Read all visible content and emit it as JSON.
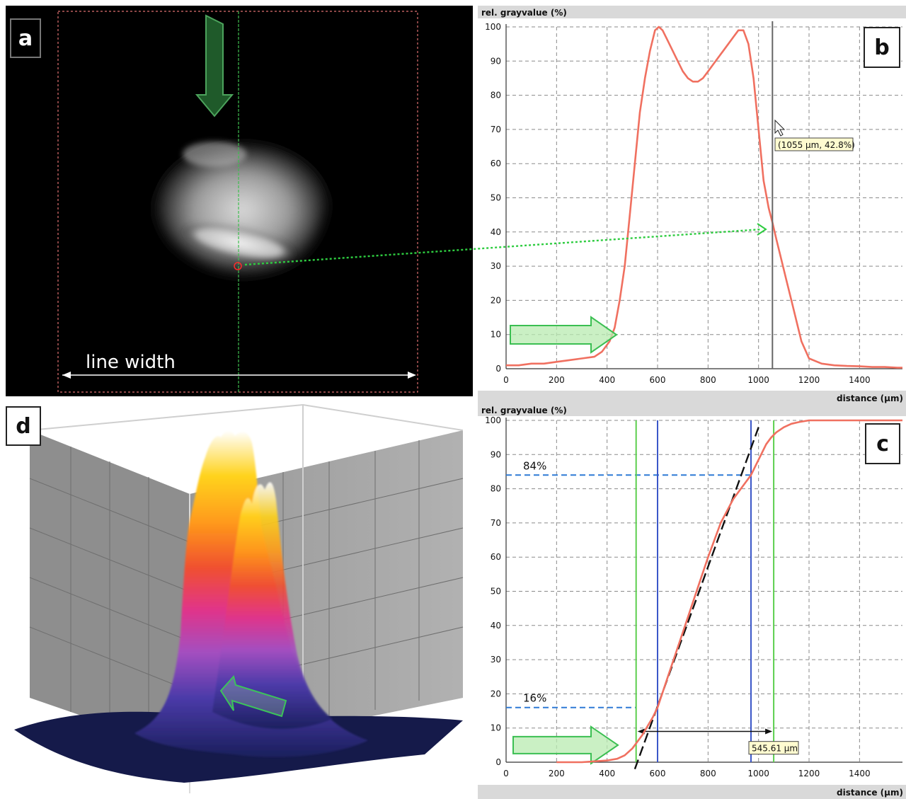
{
  "panels": {
    "a": {
      "label": "a",
      "line_width_label": "line width"
    },
    "b": {
      "label": "b"
    },
    "c": {
      "label": "c"
    },
    "d": {
      "label": "d"
    }
  },
  "chart_data": [
    {
      "panel": "b",
      "type": "line",
      "ylabel": "rel. grayvalue (%)",
      "xlabel": "distance (µm)",
      "xlim": [
        0,
        1570
      ],
      "ylim": [
        0,
        100
      ],
      "xticks": [
        0,
        200,
        400,
        600,
        800,
        1000,
        1200,
        1400
      ],
      "yticks": [
        0,
        10,
        20,
        30,
        40,
        50,
        60,
        70,
        80,
        90,
        100
      ],
      "grid": true,
      "series": [
        {
          "color": "#f07060",
          "x": [
            0,
            50,
            100,
            150,
            200,
            250,
            300,
            350,
            380,
            410,
            430,
            450,
            470,
            490,
            510,
            530,
            550,
            570,
            590,
            605,
            620,
            640,
            660,
            680,
            700,
            720,
            740,
            760,
            780,
            800,
            820,
            840,
            860,
            880,
            900,
            920,
            940,
            960,
            980,
            1000,
            1020,
            1040,
            1055,
            1070,
            1090,
            1110,
            1130,
            1150,
            1170,
            1200,
            1250,
            1300,
            1350,
            1400,
            1450,
            1500,
            1550,
            1570
          ],
          "y": [
            1,
            1,
            1.5,
            1.5,
            2,
            2.5,
            3,
            3.5,
            5,
            8,
            12,
            20,
            30,
            45,
            60,
            75,
            85,
            93,
            99,
            100,
            99,
            96,
            93,
            90,
            87,
            85,
            84,
            84,
            85,
            87,
            89,
            91,
            93,
            95,
            97,
            99,
            99,
            95,
            85,
            70,
            55,
            47,
            42.8,
            38,
            32,
            26,
            20,
            14,
            8,
            3,
            1.5,
            1,
            0.8,
            0.7,
            0.5,
            0.5,
            0.3,
            0.3
          ]
        }
      ],
      "marker_line_x": 1055,
      "annotation": "(1055 µm, 42.8%)"
    },
    {
      "panel": "c",
      "type": "line",
      "ylabel": "rel. grayvalue (%)",
      "xlabel": "distance (µm)",
      "xlim": [
        0,
        1570
      ],
      "ylim": [
        0,
        100
      ],
      "xticks": [
        0,
        200,
        400,
        600,
        800,
        1000,
        1200,
        1400
      ],
      "yticks": [
        0,
        10,
        20,
        30,
        40,
        50,
        60,
        70,
        80,
        90,
        100
      ],
      "grid": true,
      "series": [
        {
          "color": "#f07060",
          "x": [
            200,
            300,
            400,
            440,
            470,
            500,
            520,
            540,
            560,
            580,
            600,
            650,
            700,
            750,
            800,
            850,
            900,
            950,
            970,
            990,
            1010,
            1030,
            1050,
            1070,
            1100,
            1130,
            1160,
            1200,
            1300,
            1400,
            1500,
            1570
          ],
          "y": [
            0,
            0,
            0.5,
            1,
            2,
            4,
            6,
            8,
            10.5,
            13,
            16,
            27,
            38,
            49,
            60,
            70,
            77,
            82,
            84,
            87,
            90,
            93,
            95,
            96.5,
            98,
            99,
            99.5,
            100,
            100,
            100,
            100,
            100
          ]
        }
      ],
      "hlines": [
        {
          "y": 84,
          "label": "84%"
        },
        {
          "y": 16,
          "label": "16%"
        }
      ],
      "vlines_blue": [
        600,
        970
      ],
      "vlines_green": [
        515,
        1060
      ],
      "fit_line": {
        "x": [
          510,
          1000
        ],
        "y": [
          -2,
          98
        ]
      },
      "annotation": "545.61 µm"
    }
  ]
}
